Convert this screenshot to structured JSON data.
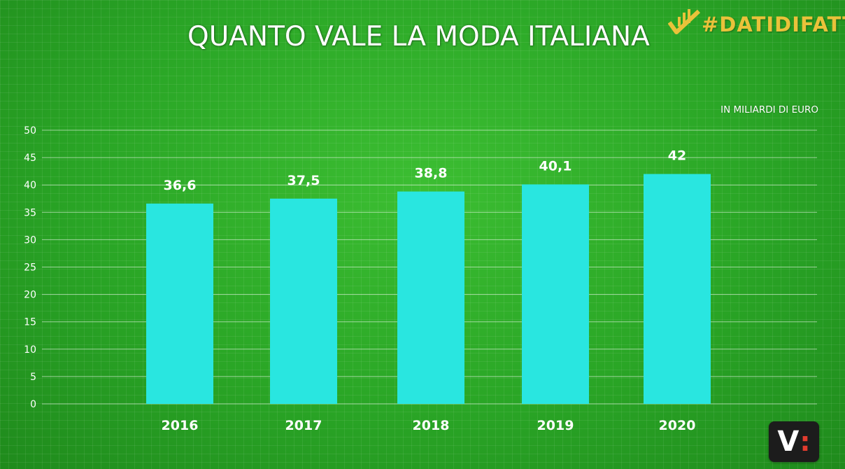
{
  "header": {
    "title": "QUANTO VALE LA MODA ITALIANA",
    "brand": "#DATIDIFATTO",
    "brand_color": "#e9c23a"
  },
  "corner_logo": {
    "letter": "V",
    "mark": ":"
  },
  "colors": {
    "bar": "#29e6e0",
    "text": "#ffffff"
  },
  "chart_data": {
    "type": "bar",
    "title": "QUANTO VALE LA MODA ITALIANA",
    "unit_label": "IN MILIARDI DI EURO",
    "categories": [
      "2016",
      "2017",
      "2018",
      "2019",
      "2020"
    ],
    "values": [
      36.6,
      37.5,
      38.8,
      40.1,
      42
    ],
    "value_labels": [
      "36,6",
      "37,5",
      "38,8",
      "40,1",
      "42"
    ],
    "ylim": [
      0,
      50
    ],
    "yticks": [
      0,
      5,
      10,
      15,
      20,
      25,
      30,
      35,
      40,
      45,
      50
    ],
    "grid": true,
    "xlabel": "",
    "ylabel": ""
  }
}
